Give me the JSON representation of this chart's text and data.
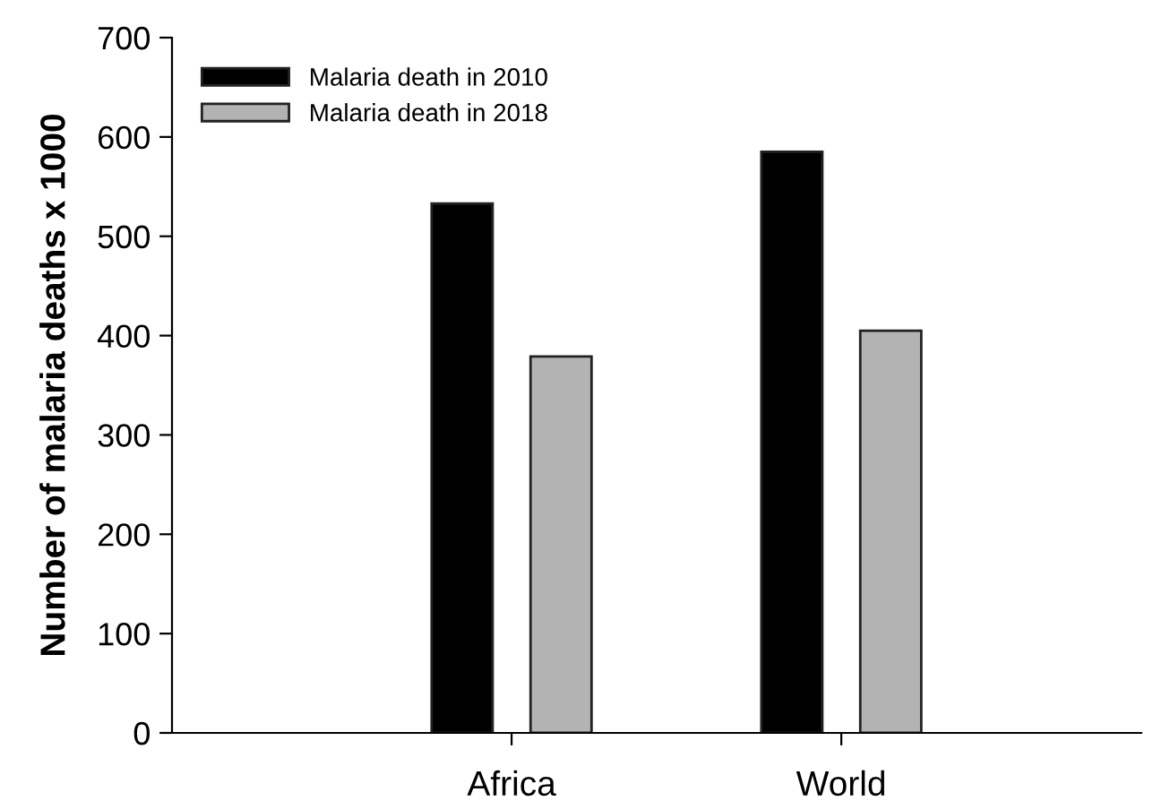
{
  "chart_data": {
    "type": "bar",
    "ylabel": "Number of malaria deaths x 1000",
    "categories": [
      "Africa",
      "World"
    ],
    "series": [
      {
        "name": "Malaria death in 2010",
        "color": "#000000",
        "values": [
          533,
          585
        ]
      },
      {
        "name": "Malaria death in 2018",
        "color": "#b3b3b3",
        "values": [
          379,
          405
        ]
      }
    ],
    "ylim": [
      0,
      700
    ],
    "yticks": [
      0,
      100,
      200,
      300,
      400,
      500,
      600,
      700
    ],
    "grid": false,
    "legend": "top left"
  }
}
